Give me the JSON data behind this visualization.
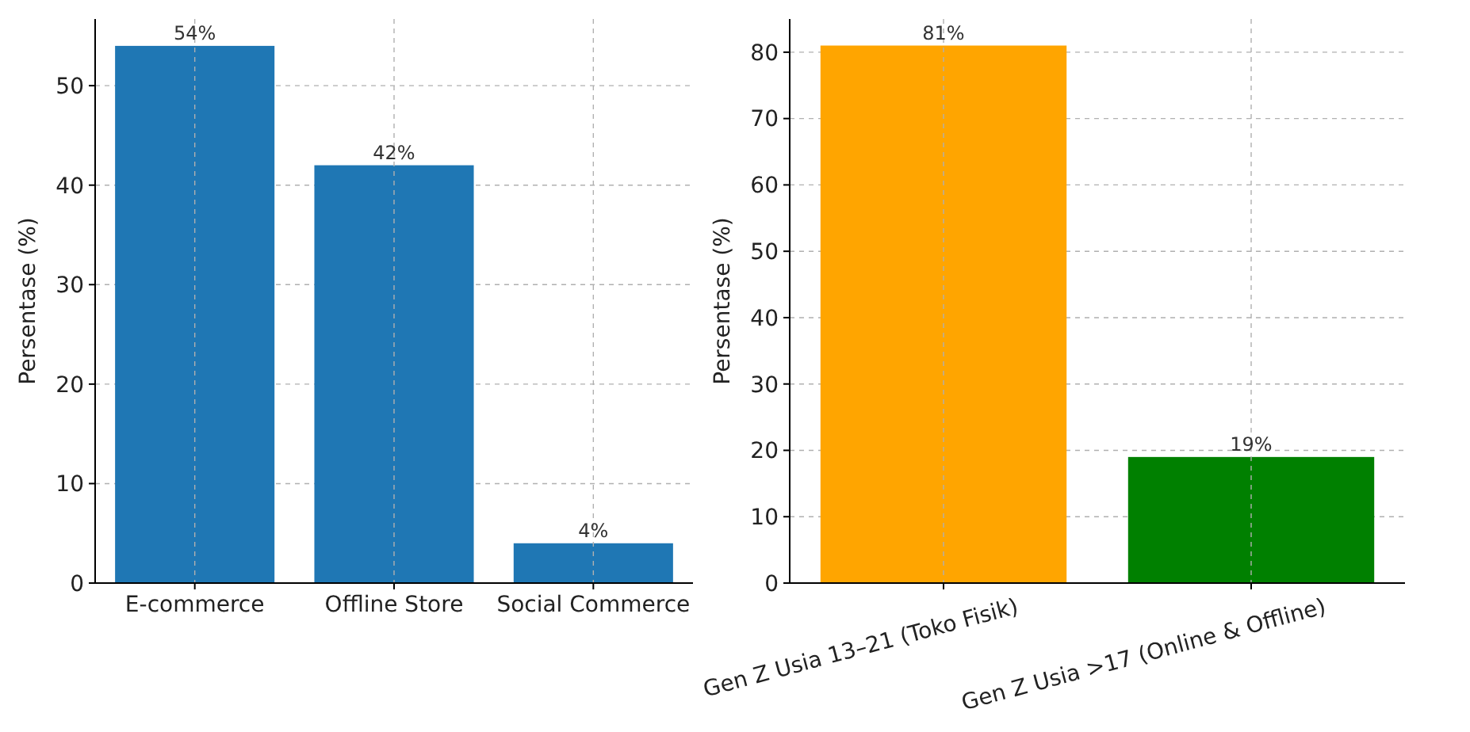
{
  "chart_data": [
    {
      "type": "bar",
      "ylabel": "Persentase (%)",
      "categories": [
        "E-commerce",
        "Offline Store",
        "Social Commerce"
      ],
      "values": [
        54,
        42,
        4
      ],
      "color": "#1f77b4",
      "value_labels": [
        "54%",
        "42%",
        "4%"
      ],
      "ylim": [
        0,
        56.7
      ],
      "yticks": [
        0,
        10,
        20,
        30,
        40,
        50
      ],
      "grid": true
    },
    {
      "type": "bar",
      "ylabel": "Persentase (%)",
      "categories": [
        "Gen Z Usia 13–21 (Toko Fisik)",
        "Gen Z Usia >17 (Online & Offline)"
      ],
      "values": [
        81,
        19
      ],
      "colors": [
        "#ffa500",
        "#008000"
      ],
      "value_labels": [
        "81%",
        "19%"
      ],
      "ylim": [
        0,
        85
      ],
      "yticks": [
        0,
        10,
        20,
        30,
        40,
        50,
        60,
        70,
        80
      ],
      "grid": true
    }
  ]
}
